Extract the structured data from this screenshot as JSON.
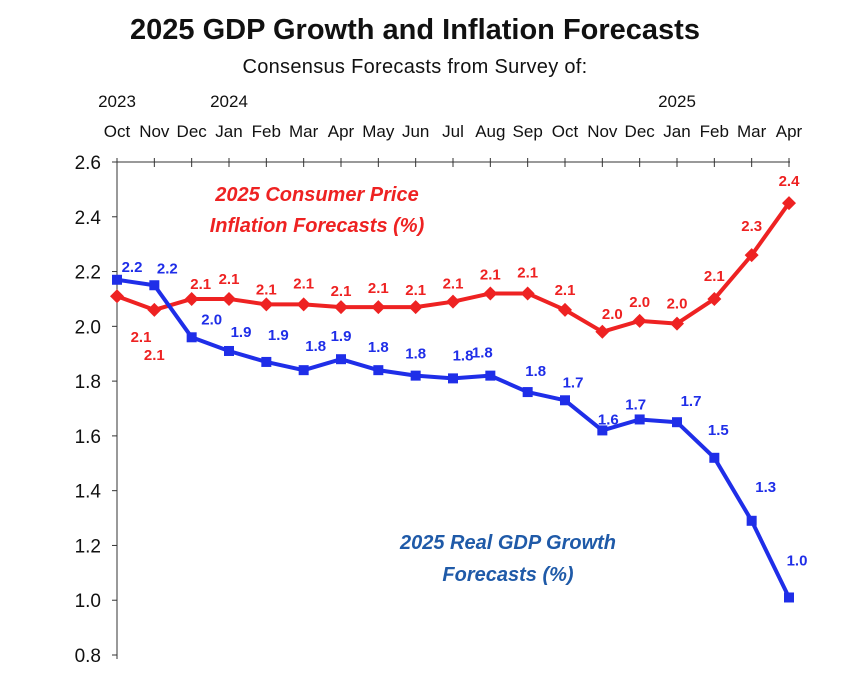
{
  "chart_data": {
    "type": "line",
    "title": "2025 GDP Growth and Inflation Forecasts",
    "subtitle": "Consensus Forecasts from Survey of:",
    "categories": [
      "Oct",
      "Nov",
      "Dec",
      "Jan",
      "Feb",
      "Mar",
      "Apr",
      "May",
      "Jun",
      "Jul",
      "Aug",
      "Sep",
      "Oct",
      "Nov",
      "Dec",
      "Jan",
      "Feb",
      "Mar",
      "Apr"
    ],
    "year_labels": [
      "2023",
      "2024",
      "2025"
    ],
    "ylim": [
      0.8,
      2.6
    ],
    "yticks": [
      "0.8",
      "1.0",
      "1.2",
      "1.4",
      "1.6",
      "1.8",
      "2.0",
      "2.2",
      "2.4",
      "2.6"
    ],
    "series": [
      {
        "name_lines": [
          "2025 Consumer Price",
          "Inflation  Forecasts  (%)"
        ],
        "color": "#ee2222",
        "marker": "diamond",
        "values": [
          2.11,
          2.06,
          2.1,
          2.1,
          2.08,
          2.08,
          2.07,
          2.07,
          2.07,
          2.09,
          2.12,
          2.12,
          2.06,
          1.98,
          2.02,
          2.01,
          2.1,
          2.26,
          2.45
        ],
        "labels": [
          "2.1",
          "2.1",
          "2.1",
          "2.1",
          "2.1",
          "2.1",
          "2.1",
          "2.1",
          "2.1",
          "2.1",
          "2.1",
          "2.1",
          "2.1",
          "2.0",
          "2.0",
          "2.0",
          "2.1",
          "2.3",
          "2.4"
        ]
      },
      {
        "name_lines": [
          "2025 Real GDP Growth",
          "Forecasts  (%)"
        ],
        "color": "#1f2ee8",
        "marker": "square",
        "values": [
          2.17,
          2.15,
          1.96,
          1.91,
          1.87,
          1.84,
          1.88,
          1.84,
          1.82,
          1.81,
          1.82,
          1.76,
          1.73,
          1.62,
          1.66,
          1.65,
          1.52,
          1.29,
          1.01
        ],
        "labels": [
          "2.2",
          "2.2",
          "2.0",
          "1.9",
          "1.9",
          "1.8",
          "1.9",
          "1.8",
          "1.8",
          "1.8",
          "1.8",
          "1.8",
          "1.7",
          "1.6",
          "1.7",
          "1.7",
          "1.5",
          "1.3",
          "1.0"
        ]
      }
    ],
    "annotation_color_gdp": "#1f5aa8",
    "grid": false,
    "legend": "none (inline annotations)"
  }
}
